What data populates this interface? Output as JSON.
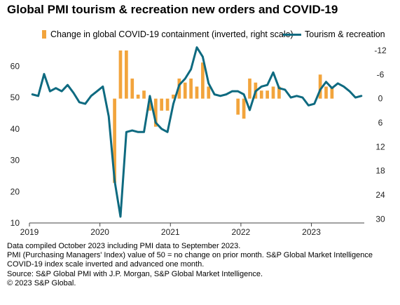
{
  "chart_data": {
    "type": "bar+line",
    "title": "Global PMI tourism & recreation new orders and COVID-19",
    "x_ticks": [
      "2019",
      "2020",
      "2021",
      "2022",
      "2023"
    ],
    "y_left": {
      "ticks": [
        10,
        20,
        30,
        40,
        50,
        60
      ],
      "range": [
        10,
        65
      ]
    },
    "y_right": {
      "ticks": [
        -12,
        -6,
        0,
        6,
        12,
        18,
        24,
        30
      ],
      "range": [
        -12,
        31
      ],
      "inverted": true
    },
    "months": [
      "2019-01",
      "2019-02",
      "2019-03",
      "2019-04",
      "2019-05",
      "2019-06",
      "2019-07",
      "2019-08",
      "2019-09",
      "2019-10",
      "2019-11",
      "2019-12",
      "2020-01",
      "2020-02",
      "2020-03",
      "2020-04",
      "2020-05",
      "2020-06",
      "2020-07",
      "2020-08",
      "2020-09",
      "2020-10",
      "2020-11",
      "2020-12",
      "2021-01",
      "2021-02",
      "2021-03",
      "2021-04",
      "2021-05",
      "2021-06",
      "2021-07",
      "2021-08",
      "2021-09",
      "2021-10",
      "2021-11",
      "2021-12",
      "2022-01",
      "2022-02",
      "2022-03",
      "2022-04",
      "2022-05",
      "2022-06",
      "2022-07",
      "2022-08",
      "2022-09",
      "2022-10",
      "2022-11",
      "2022-12",
      "2023-01",
      "2023-02",
      "2023-03",
      "2023-04",
      "2023-05",
      "2023-06",
      "2023-07",
      "2023-08",
      "2023-09"
    ],
    "series": [
      {
        "name": "Change in global COVID-19 containment (inverted, right scale)",
        "axis": "right",
        "kind": "bar",
        "color": "#F2A43C",
        "values": [
          0,
          0,
          0,
          0,
          0,
          0,
          0,
          0,
          0,
          0,
          0,
          0,
          0,
          0,
          21,
          -12,
          -12,
          -5,
          -1,
          -2,
          3,
          7,
          3,
          3,
          -1,
          -5,
          -4,
          -5,
          -3,
          -9,
          -3,
          0,
          0,
          0,
          0,
          4,
          5,
          -5,
          -4,
          -2,
          -2,
          -3,
          -3,
          0,
          0,
          0,
          0,
          0,
          0,
          -6,
          -3,
          -3,
          0,
          0,
          0,
          0,
          0
        ]
      },
      {
        "name": "Tourism & recreation",
        "axis": "left",
        "kind": "line",
        "color": "#0E6A80",
        "values": [
          51.0,
          50.5,
          57.5,
          52.0,
          53.0,
          52.0,
          54.0,
          51.5,
          48.5,
          48.0,
          50.5,
          52.0,
          53.5,
          44.0,
          23.5,
          12.0,
          39.0,
          39.5,
          39.0,
          39.0,
          50.5,
          42.0,
          40.0,
          39.0,
          48.0,
          54.0,
          56.0,
          59.0,
          66.0,
          63.0,
          54.5,
          51.0,
          50.5,
          51.0,
          52.0,
          52.0,
          51.0,
          46.0,
          52.0,
          53.5,
          54.0,
          58.0,
          53.0,
          52.5,
          50.0,
          50.5,
          50.0,
          47.5,
          48.0,
          52.5,
          55.0,
          53.0,
          54.5,
          53.5,
          52.0,
          50.0,
          50.5
        ]
      }
    ]
  },
  "notes": [
    "Data compiled October 2023 including PMI data to September 2023.",
    "PMI (Purchasing Managers' Index) value of 50 = no change on prior month. S&P Global Market Intelligence",
    "COVID-19 index scale inverted and advanced one month.",
    "Source: S&P Global PMI with J.P. Morgan, S&P Global Market Intelligence.",
    "© 2023 S&P Global."
  ]
}
